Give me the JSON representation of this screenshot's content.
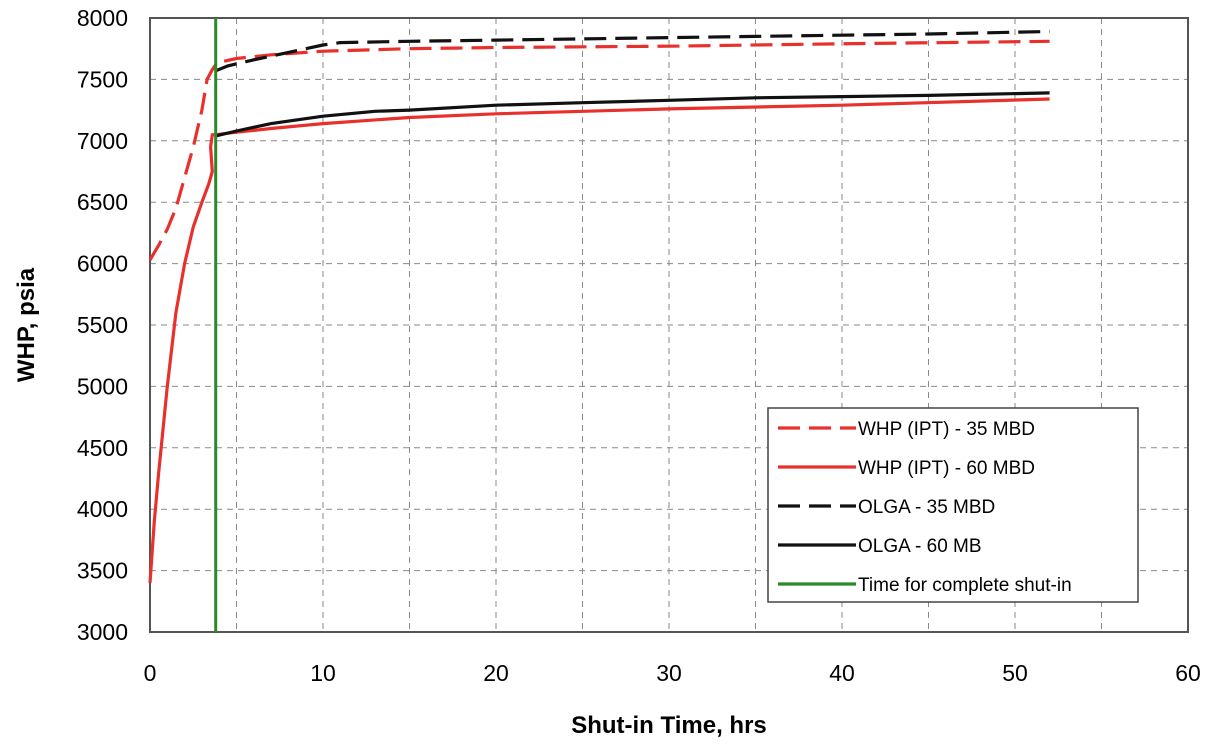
{
  "chart_data": {
    "type": "line",
    "xlabel": "Shut-in Time, hrs",
    "ylabel": "WHP, psia",
    "xlim": [
      0,
      60
    ],
    "ylim": [
      3000,
      8000
    ],
    "xticks": [
      0,
      10,
      20,
      30,
      40,
      50,
      60
    ],
    "yticks": [
      3000,
      3500,
      4000,
      4500,
      5000,
      5500,
      6000,
      6500,
      7000,
      7500,
      8000
    ],
    "grid": "dashed",
    "legend_position": "lower-right",
    "series": [
      {
        "name": "WHP (IPT) - 35 MBD",
        "color": "#e8312d",
        "style": "dashed",
        "x": [
          0,
          0.5,
          1,
          1.5,
          2,
          2.5,
          3,
          3.3,
          3.6,
          3.8,
          4,
          5,
          7,
          10,
          15,
          20,
          30,
          40,
          52
        ],
        "y": [
          6030,
          6150,
          6280,
          6450,
          6700,
          6950,
          7250,
          7500,
          7580,
          7620,
          7640,
          7670,
          7700,
          7730,
          7750,
          7760,
          7770,
          7790,
          7810
        ]
      },
      {
        "name": "WHP (IPT) - 60 MBD",
        "color": "#e8312d",
        "style": "solid",
        "x": [
          0,
          0.25,
          0.5,
          0.75,
          1,
          1.5,
          2,
          2.5,
          3,
          3.4,
          3.6,
          3.5,
          3.6,
          3.8,
          5,
          7,
          10,
          15,
          20,
          30,
          40,
          52
        ],
        "y": [
          3400,
          3900,
          4300,
          4650,
          5000,
          5600,
          6000,
          6300,
          6500,
          6650,
          6750,
          6950,
          7050,
          7050,
          7070,
          7100,
          7140,
          7190,
          7220,
          7260,
          7290,
          7340
        ]
      },
      {
        "name": "OLGA - 35 MBD",
        "color": "#111111",
        "style": "dashed",
        "x": [
          3.8,
          4.5,
          6,
          8,
          10,
          11,
          15,
          20,
          25,
          30,
          35,
          40,
          45,
          52
        ],
        "y": [
          7570,
          7610,
          7660,
          7720,
          7780,
          7800,
          7810,
          7820,
          7830,
          7840,
          7850,
          7860,
          7870,
          7890
        ]
      },
      {
        "name": "OLGA - 60 MB",
        "color": "#111111",
        "style": "solid",
        "x": [
          3.8,
          5,
          7,
          10,
          13,
          15,
          20,
          25,
          30,
          35,
          40,
          45,
          52
        ],
        "y": [
          7040,
          7080,
          7140,
          7200,
          7240,
          7250,
          7290,
          7310,
          7330,
          7350,
          7360,
          7370,
          7390
        ]
      },
      {
        "name": "Time for complete shut-in",
        "color": "#2a8a2a",
        "style": "solid",
        "x": [
          3.8,
          3.8
        ],
        "y": [
          3000,
          8000
        ]
      }
    ]
  }
}
